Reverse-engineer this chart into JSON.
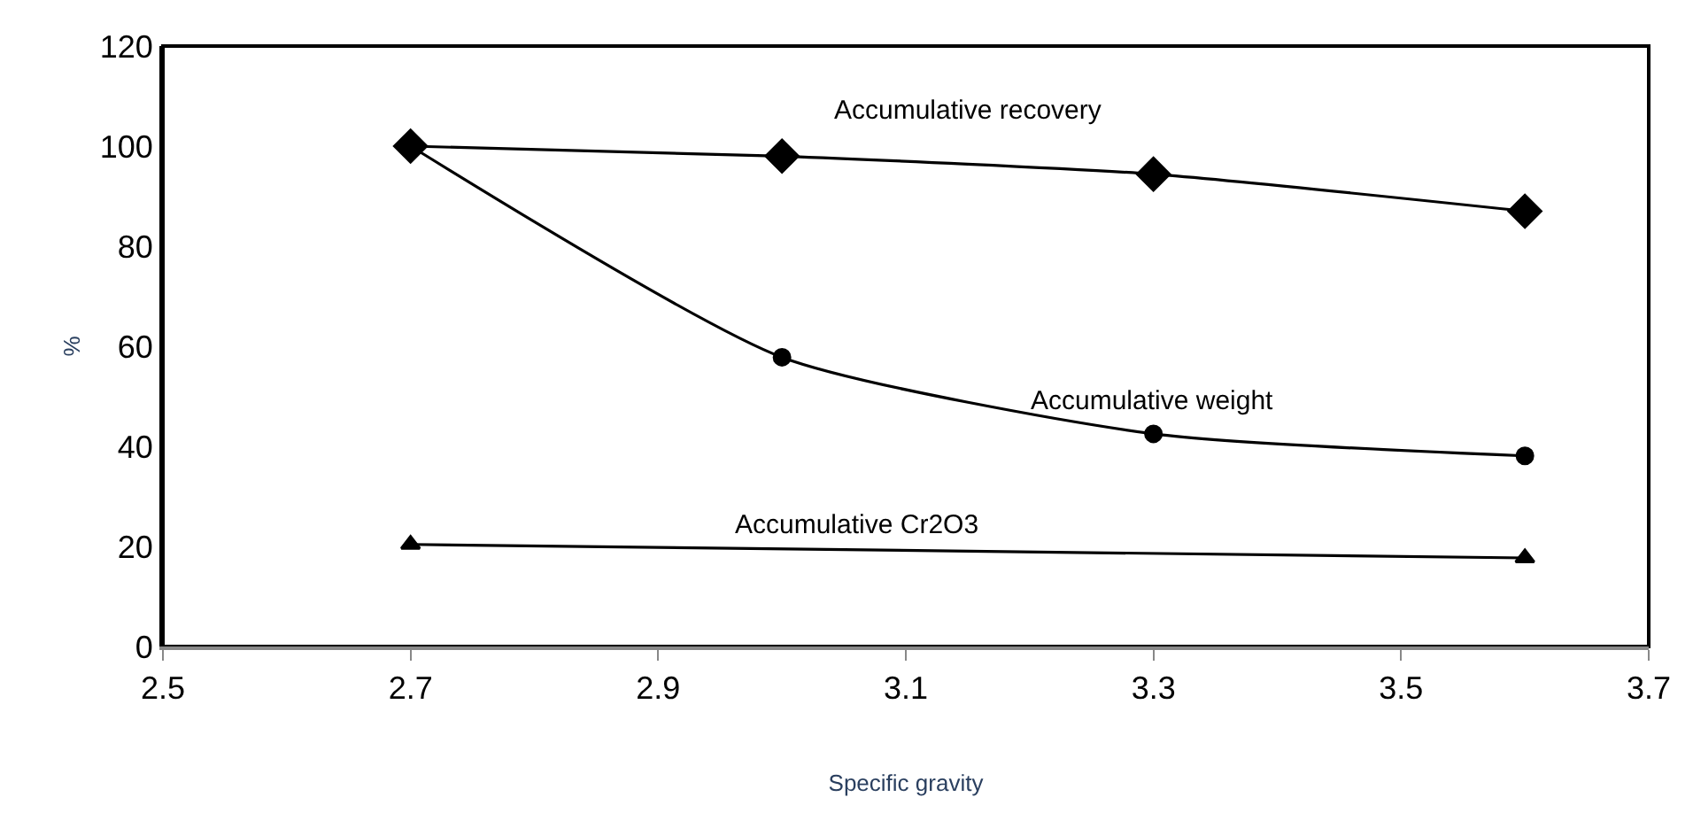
{
  "chart_data": {
    "type": "line",
    "xlabel": "Specific gravity",
    "ylabel": "%",
    "x": [
      2.7,
      3.0,
      3.3,
      3.6
    ],
    "series": [
      {
        "name": "Accumulative recovery",
        "color": "#000000",
        "marker": "diamond",
        "values": [
          100,
          98,
          94.4,
          87
        ]
      },
      {
        "name": "Accumulative weight",
        "color": "#000000",
        "marker": "circle",
        "values": [
          100,
          57.8,
          42.5,
          38.1
        ]
      },
      {
        "name": "Accumulative Cr2O3",
        "color": "#000000",
        "marker": "triangle",
        "x": [
          2.7,
          3.6
        ],
        "values": [
          20.4,
          17.7
        ]
      }
    ],
    "xlim": [
      2.5,
      3.7
    ],
    "xticks": [
      2.5,
      2.7,
      2.9,
      3.1,
      3.3,
      3.5,
      3.7
    ],
    "ylim": [
      0,
      120
    ],
    "yticks": [
      0,
      20,
      40,
      60,
      80,
      100,
      120
    ],
    "grid": false,
    "legend": false
  }
}
